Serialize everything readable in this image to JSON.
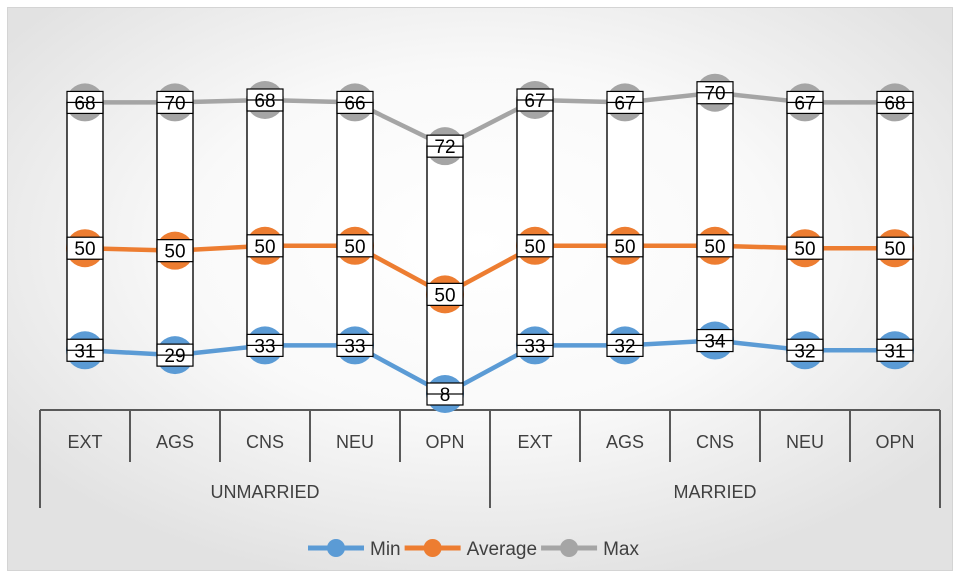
{
  "chart_data": {
    "type": "line",
    "groups": [
      {
        "label": "UNMARRIED",
        "categories": [
          "EXT",
          "AGS",
          "CNS",
          "NEU",
          "OPN"
        ]
      },
      {
        "label": "MARRIED",
        "categories": [
          "EXT",
          "AGS",
          "CNS",
          "NEU",
          "OPN"
        ]
      }
    ],
    "categories": [
      "EXT",
      "AGS",
      "CNS",
      "NEU",
      "OPN",
      "EXT",
      "AGS",
      "CNS",
      "NEU",
      "OPN"
    ],
    "series": [
      {
        "name": "Min",
        "color": "#5b9bd5",
        "values": [
          31,
          29,
          33,
          33,
          8,
          33,
          32,
          34,
          32,
          31
        ],
        "plot_y": [
          31,
          30,
          32,
          32,
          22,
          32,
          32,
          33,
          31,
          31
        ]
      },
      {
        "name": "Average",
        "color": "#ed7d31",
        "values": [
          50,
          50,
          50,
          50,
          50,
          50,
          50,
          50,
          50,
          50
        ],
        "plot_y": [
          52,
          51.5,
          52.5,
          52.5,
          42.5,
          52.5,
          52.5,
          52.5,
          52,
          52
        ]
      },
      {
        "name": "Max",
        "color": "#a5a5a5",
        "values": [
          68,
          70,
          68,
          66,
          72,
          67,
          67,
          70,
          67,
          68
        ],
        "plot_y": [
          82,
          82,
          82.5,
          82,
          73,
          82.5,
          82,
          84,
          82,
          82
        ]
      }
    ],
    "legend_position": "bottom",
    "gridlines": false,
    "label_note": "High-low bars span Min to Max with data labels inside"
  }
}
